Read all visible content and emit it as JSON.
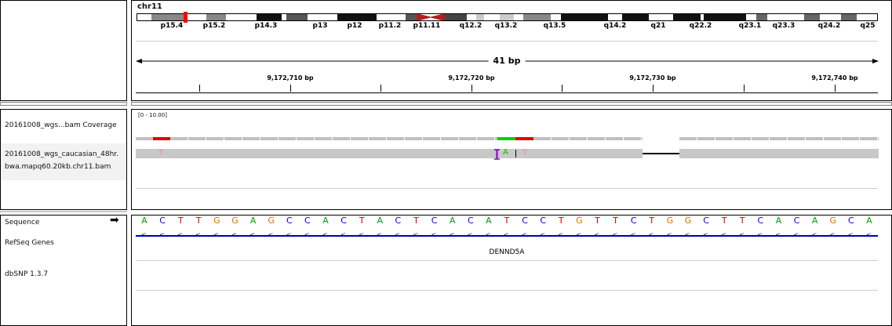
{
  "ideogram": {
    "chromosome": "chr11",
    "bands": [
      "p15.4",
      "p15.2",
      "p14.3",
      "p13",
      "p12",
      "p11.2",
      "p11.11",
      "q12.2",
      "q13.2",
      "q13.5",
      "q14.2",
      "q21",
      "q22.2",
      "q23.1",
      "q23.3",
      "q24.2",
      "q25"
    ]
  },
  "ruler": {
    "span_label": "41 bp",
    "ticks": [
      "9,172,710 bp",
      "9,172,720 bp",
      "9,172,730 bp",
      "9,172,740 bp"
    ]
  },
  "tracks": {
    "coverage_name": "20161008_wgs...bam Coverage",
    "coverage_range": "[0 - 10.00]",
    "alignment_name_line1": "20161008_wgs_caucasian_48hr.",
    "alignment_name_line2": "bwa.mapq60.20kb.chr11.bam",
    "read_bases": [
      "T",
      "A",
      "T"
    ],
    "sequence_label": "Sequence",
    "sequence_arrow": "➡",
    "refseq_label": "RefSeq Genes",
    "gene_name": "DENND5A",
    "dbsnp_label": "dbSNP 1.3.7"
  },
  "sequence": [
    "A",
    "C",
    "T",
    "T",
    "G",
    "G",
    "A",
    "G",
    "C",
    "C",
    "A",
    "C",
    "T",
    "A",
    "C",
    "T",
    "C",
    "A",
    "C",
    "A",
    "T",
    "C",
    "C",
    "T",
    "G",
    "T",
    "T",
    "C",
    "T",
    "G",
    "G",
    "C",
    "T",
    "T",
    "C",
    "A",
    "C",
    "A",
    "G",
    "C",
    "A"
  ],
  "colors": {
    "A": "#00a000",
    "C": "#0000c8",
    "G": "#d17105",
    "T": "#e00000",
    "coverage": "#c0c0c0",
    "mismatch_red": "#e00000",
    "mismatch_green": "#00d000",
    "read": "#c8c8c8",
    "strand": "#0000cc"
  }
}
